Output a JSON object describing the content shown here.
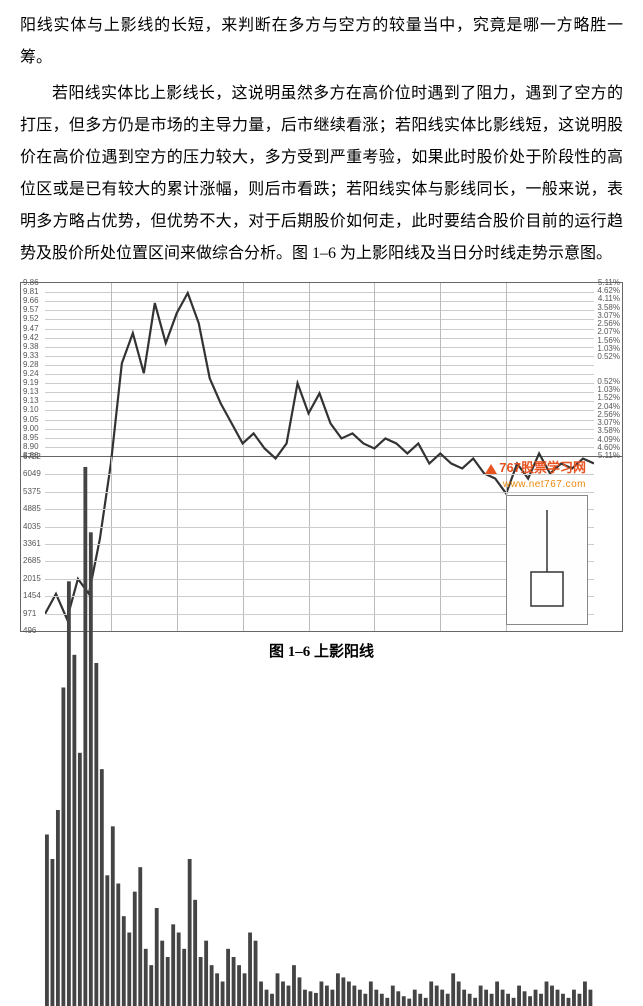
{
  "paragraphs": {
    "p1": "阳线实体与上影线的长短，来判断在多方与空方的较量当中，究竟是哪一方略胜一筹。",
    "p2": "若阳线实体比上影线长，这说明虽然多方在高价位时遇到了阻力，遇到了空方的打压，但多方仍是市场的主导力量，后市继续看涨；若阳线实体比影线短，这说明股价在高价位遇到空方的压力较大，多方受到严重考验，如果此时股价处于阶段性的高位区或是已有较大的累计涨幅，则后市看跌；若阳线实体与影线同长，一般来说，表明多方略占优势，但优势不大，对于后期股价如何走，此时要结合股价目前的运行趋势及股价所处位置区间来做综合分析。图 1–6 为上影阳线及当日分时线走势示意图。"
  },
  "caption": "图 1–6 上影阳线",
  "watermark": {
    "name": "767股票学习网",
    "url": "www.net767.com"
  },
  "colors": {
    "text": "#000000",
    "grid": "#cccccc",
    "gridv": "#bbbbbb",
    "price_line": "#333333",
    "vol_bar": "#444444",
    "wm_primary": "#e8521f",
    "wm_secondary": "#e8890f",
    "bg": "#ffffff"
  },
  "chart": {
    "type": "intraday-line+volume",
    "price": {
      "ylim": [
        9.13,
        9.86
      ],
      "left_ticks": [
        "9.86",
        "9.81",
        "9.66",
        "9.57",
        "9.52",
        "9.47",
        "9.42",
        "9.38",
        "9.33",
        "9.28",
        "9.24",
        "9.19",
        "9.13",
        "9.13",
        "9.10",
        "9.05",
        "9.00",
        "8.95",
        "8.90",
        "8.86"
      ],
      "right_ticks": [
        "5.11%",
        "4.62%",
        "4.11%",
        "3.58%",
        "3.07%",
        "2.56%",
        "2.07%",
        "1.56%",
        "1.03%",
        "0.52%",
        "",
        "",
        "0.52%",
        "1.03%",
        "1.52%",
        "2.04%",
        "2.56%",
        "3.07%",
        "3.58%",
        "4.09%",
        "4.60%",
        "5.11%"
      ],
      "line_width": 1,
      "points": [
        [
          0,
          9.2
        ],
        [
          3,
          9.24
        ],
        [
          6,
          9.19
        ],
        [
          9,
          9.27
        ],
        [
          12,
          9.24
        ],
        [
          15,
          9.35
        ],
        [
          18,
          9.5
        ],
        [
          21,
          9.7
        ],
        [
          24,
          9.76
        ],
        [
          27,
          9.68
        ],
        [
          30,
          9.82
        ],
        [
          33,
          9.74
        ],
        [
          36,
          9.8
        ],
        [
          39,
          9.84
        ],
        [
          42,
          9.78
        ],
        [
          45,
          9.67
        ],
        [
          48,
          9.62
        ],
        [
          51,
          9.58
        ],
        [
          54,
          9.54
        ],
        [
          57,
          9.56
        ],
        [
          60,
          9.53
        ],
        [
          63,
          9.51
        ],
        [
          66,
          9.54
        ],
        [
          69,
          9.66
        ],
        [
          72,
          9.6
        ],
        [
          75,
          9.64
        ],
        [
          78,
          9.58
        ],
        [
          81,
          9.55
        ],
        [
          84,
          9.56
        ],
        [
          87,
          9.54
        ],
        [
          90,
          9.53
        ],
        [
          93,
          9.55
        ],
        [
          96,
          9.54
        ],
        [
          99,
          9.52
        ],
        [
          102,
          9.54
        ],
        [
          105,
          9.5
        ],
        [
          108,
          9.52
        ],
        [
          111,
          9.5
        ],
        [
          114,
          9.49
        ],
        [
          117,
          9.51
        ],
        [
          120,
          9.48
        ],
        [
          123,
          9.47
        ],
        [
          126,
          9.44
        ],
        [
          129,
          9.5
        ],
        [
          132,
          9.47
        ],
        [
          135,
          9.52
        ],
        [
          138,
          9.48
        ],
        [
          141,
          9.5
        ],
        [
          144,
          9.49
        ],
        [
          147,
          9.51
        ],
        [
          150,
          9.5
        ]
      ]
    },
    "volume": {
      "ylim": [
        0,
        6722
      ],
      "left_ticks": [
        "6722",
        "6049",
        "5375",
        "4885",
        "4035",
        "3361",
        "2685",
        "2015",
        "1454",
        "971",
        "496"
      ],
      "bar_width": 1,
      "bars": [
        2100,
        1800,
        2400,
        3900,
        5200,
        4300,
        3100,
        6600,
        5800,
        4200,
        2900,
        1600,
        2200,
        1500,
        1100,
        900,
        1400,
        1700,
        700,
        500,
        1200,
        800,
        600,
        1000,
        900,
        700,
        1800,
        1300,
        600,
        800,
        500,
        400,
        300,
        700,
        600,
        500,
        400,
        900,
        800,
        300,
        200,
        150,
        400,
        300,
        250,
        500,
        350,
        200,
        180,
        160,
        300,
        250,
        200,
        400,
        350,
        300,
        250,
        200,
        150,
        300,
        200,
        150,
        100,
        250,
        180,
        120,
        90,
        200,
        150,
        100,
        300,
        250,
        200,
        150,
        400,
        300,
        200,
        150,
        100,
        250,
        200,
        150,
        300,
        200,
        150,
        100,
        250,
        180,
        120,
        200,
        150,
        300,
        250,
        200,
        150,
        100,
        200,
        150,
        300,
        200
      ]
    },
    "candle_inset": {
      "open": 0.3,
      "close": 0.55,
      "high": 1.0,
      "low": 0.3,
      "stroke": "#333333",
      "fill": "#ffffff"
    },
    "vgrid_positions_pct": [
      12,
      24,
      36,
      48,
      60,
      72,
      84
    ]
  }
}
